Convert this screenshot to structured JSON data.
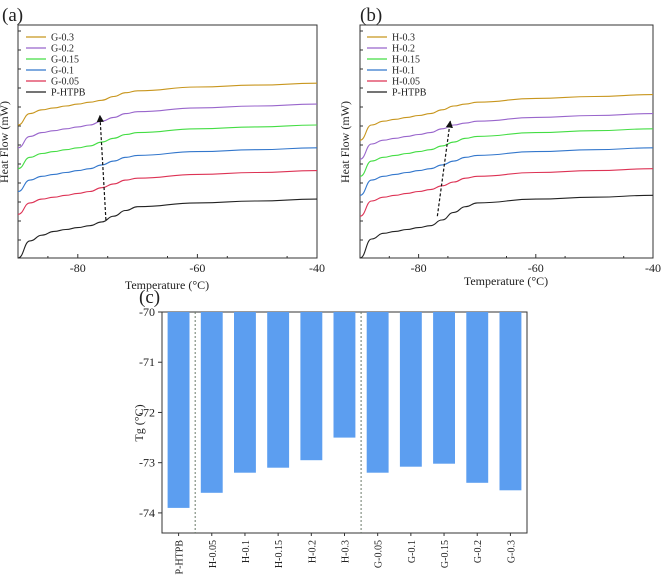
{
  "chart_data": [
    {
      "type": "line",
      "panel_label": "(a)",
      "xlabel": "Temperature (°C)",
      "ylabel": "Heat Flow (mW)",
      "xlim": [
        -90,
        -40
      ],
      "xticks": [
        "-80",
        "-60",
        "-40"
      ],
      "xtick_values": [
        -80,
        -60,
        -40
      ],
      "legend": [
        "G-0.3",
        "G-0.2",
        "G-0.15",
        "G-0.1",
        "G-0.05",
        "P-HTPB"
      ],
      "colors": [
        "#c8961e",
        "#9966cc",
        "#44dd44",
        "#3377cc",
        "#dd3355",
        "#222222"
      ],
      "series": [
        {
          "name": "G-0.3",
          "x": [
            -90,
            -88,
            -86,
            -84,
            -82,
            -80,
            -78,
            -76,
            -74,
            -72,
            -70,
            -60,
            -50,
            -40
          ],
          "values": [
            0.7,
            0.76,
            0.78,
            0.79,
            0.8,
            0.81,
            0.82,
            0.83,
            0.85,
            0.87,
            0.88,
            0.9,
            0.91,
            0.92
          ]
        },
        {
          "name": "G-0.2",
          "x": [
            -90,
            -88,
            -86,
            -84,
            -82,
            -80,
            -78,
            -76,
            -74,
            -72,
            -70,
            -60,
            -50,
            -40
          ],
          "values": [
            0.58,
            0.64,
            0.66,
            0.67,
            0.68,
            0.69,
            0.7,
            0.72,
            0.74,
            0.76,
            0.77,
            0.79,
            0.8,
            0.81
          ]
        },
        {
          "name": "G-0.15",
          "x": [
            -90,
            -88,
            -86,
            -84,
            -82,
            -80,
            -78,
            -76,
            -74,
            -72,
            -70,
            -60,
            -50,
            -40
          ],
          "values": [
            0.47,
            0.53,
            0.55,
            0.56,
            0.57,
            0.58,
            0.59,
            0.61,
            0.63,
            0.65,
            0.66,
            0.68,
            0.69,
            0.7
          ]
        },
        {
          "name": "G-0.1",
          "x": [
            -90,
            -88,
            -86,
            -84,
            -82,
            -80,
            -78,
            -76,
            -74,
            -72,
            -70,
            -60,
            -50,
            -40
          ],
          "values": [
            0.35,
            0.41,
            0.43,
            0.44,
            0.45,
            0.46,
            0.47,
            0.49,
            0.51,
            0.53,
            0.54,
            0.56,
            0.57,
            0.58
          ]
        },
        {
          "name": "G-0.05",
          "x": [
            -90,
            -88,
            -86,
            -84,
            -82,
            -80,
            -78,
            -76,
            -74,
            -72,
            -70,
            -60,
            -50,
            -40
          ],
          "values": [
            0.23,
            0.29,
            0.31,
            0.32,
            0.33,
            0.34,
            0.35,
            0.37,
            0.39,
            0.41,
            0.42,
            0.44,
            0.45,
            0.46
          ]
        },
        {
          "name": "P-HTPB",
          "x": [
            -90,
            -88,
            -86,
            -84,
            -82,
            -80,
            -78,
            -76,
            -74,
            -72,
            -70,
            -60,
            -50,
            -40
          ],
          "values": [
            0.0,
            0.09,
            0.12,
            0.14,
            0.15,
            0.16,
            0.17,
            0.19,
            0.22,
            0.25,
            0.27,
            0.29,
            0.3,
            0.31
          ]
        }
      ],
      "arrows": [
        {
          "x1": -75.3,
          "y1": 0.2,
          "x2": -76.3,
          "y2": 0.75
        }
      ]
    },
    {
      "type": "line",
      "panel_label": "(b)",
      "xlabel": "Temperature (°C)",
      "ylabel": "Heat Flow (mW)",
      "xlim": [
        -90,
        -40
      ],
      "xticks": [
        "-80",
        "-60",
        "-40"
      ],
      "xtick_values": [
        -80,
        -60,
        -40
      ],
      "legend": [
        "H-0.3",
        "H-0.2",
        "H-0.15",
        "H-0.1",
        "H-0.05",
        "P-HTPB"
      ],
      "colors": [
        "#c8961e",
        "#9966cc",
        "#44dd44",
        "#3377cc",
        "#dd3355",
        "#222222"
      ],
      "series": [
        {
          "name": "H-0.3",
          "x": [
            -90,
            -88,
            -86,
            -84,
            -82,
            -80,
            -78,
            -76,
            -74,
            -72,
            -70,
            -60,
            -50,
            -40
          ],
          "values": [
            0.62,
            0.7,
            0.72,
            0.73,
            0.74,
            0.75,
            0.76,
            0.78,
            0.8,
            0.81,
            0.82,
            0.84,
            0.85,
            0.86
          ]
        },
        {
          "name": "H-0.2",
          "x": [
            -90,
            -88,
            -86,
            -84,
            -82,
            -80,
            -78,
            -76,
            -74,
            -72,
            -70,
            -60,
            -50,
            -40
          ],
          "values": [
            0.52,
            0.6,
            0.62,
            0.63,
            0.64,
            0.65,
            0.66,
            0.68,
            0.7,
            0.71,
            0.72,
            0.74,
            0.75,
            0.76
          ]
        },
        {
          "name": "H-0.15",
          "x": [
            -90,
            -88,
            -86,
            -84,
            -82,
            -80,
            -78,
            -76,
            -74,
            -72,
            -70,
            -60,
            -50,
            -40
          ],
          "values": [
            0.43,
            0.51,
            0.53,
            0.54,
            0.55,
            0.56,
            0.57,
            0.59,
            0.61,
            0.63,
            0.64,
            0.66,
            0.67,
            0.68
          ]
        },
        {
          "name": "H-0.1",
          "x": [
            -90,
            -88,
            -86,
            -84,
            -82,
            -80,
            -78,
            -76,
            -74,
            -72,
            -70,
            -60,
            -50,
            -40
          ],
          "values": [
            0.33,
            0.41,
            0.43,
            0.44,
            0.45,
            0.46,
            0.47,
            0.49,
            0.51,
            0.53,
            0.54,
            0.56,
            0.57,
            0.58
          ]
        },
        {
          "name": "H-0.05",
          "x": [
            -90,
            -88,
            -86,
            -84,
            -82,
            -80,
            -78,
            -76,
            -74,
            -72,
            -70,
            -60,
            -50,
            -40
          ],
          "values": [
            0.22,
            0.3,
            0.32,
            0.33,
            0.34,
            0.35,
            0.36,
            0.38,
            0.4,
            0.42,
            0.43,
            0.45,
            0.46,
            0.47
          ]
        },
        {
          "name": "P-HTPB",
          "x": [
            -90,
            -88,
            -86,
            -84,
            -82,
            -80,
            -78,
            -76,
            -74,
            -72,
            -70,
            -60,
            -50,
            -40
          ],
          "values": [
            0.0,
            0.1,
            0.13,
            0.14,
            0.15,
            0.16,
            0.17,
            0.2,
            0.24,
            0.27,
            0.29,
            0.31,
            0.32,
            0.33
          ]
        }
      ],
      "arrows": [
        {
          "x1": -76.8,
          "y1": 0.22,
          "x2": -74.6,
          "y2": 0.72
        }
      ]
    },
    {
      "type": "bar",
      "panel_label": "(c)",
      "xlabel": "",
      "ylabel": "Tg (°C)",
      "ylim": [
        -70,
        -74.4
      ],
      "yticks": [
        "-70",
        "-71",
        "-72",
        "-73",
        "-74"
      ],
      "ytick_values": [
        -70,
        -71,
        -72,
        -73,
        -74
      ],
      "categories": [
        "P-HTPB",
        "H-0.05",
        "H-0.1",
        "H-0.15",
        "H-0.2",
        "H-0.3",
        "G-0.05",
        "G-0.1",
        "G-0.15",
        "G-0.2",
        "G-0.3"
      ],
      "values": [
        -73.9,
        -73.6,
        -73.2,
        -73.1,
        -72.95,
        -72.5,
        -73.2,
        -73.08,
        -73.02,
        -73.4,
        -73.55
      ],
      "bar_color": "#5c9ef0",
      "separators_after_index": [
        0,
        5
      ]
    }
  ]
}
